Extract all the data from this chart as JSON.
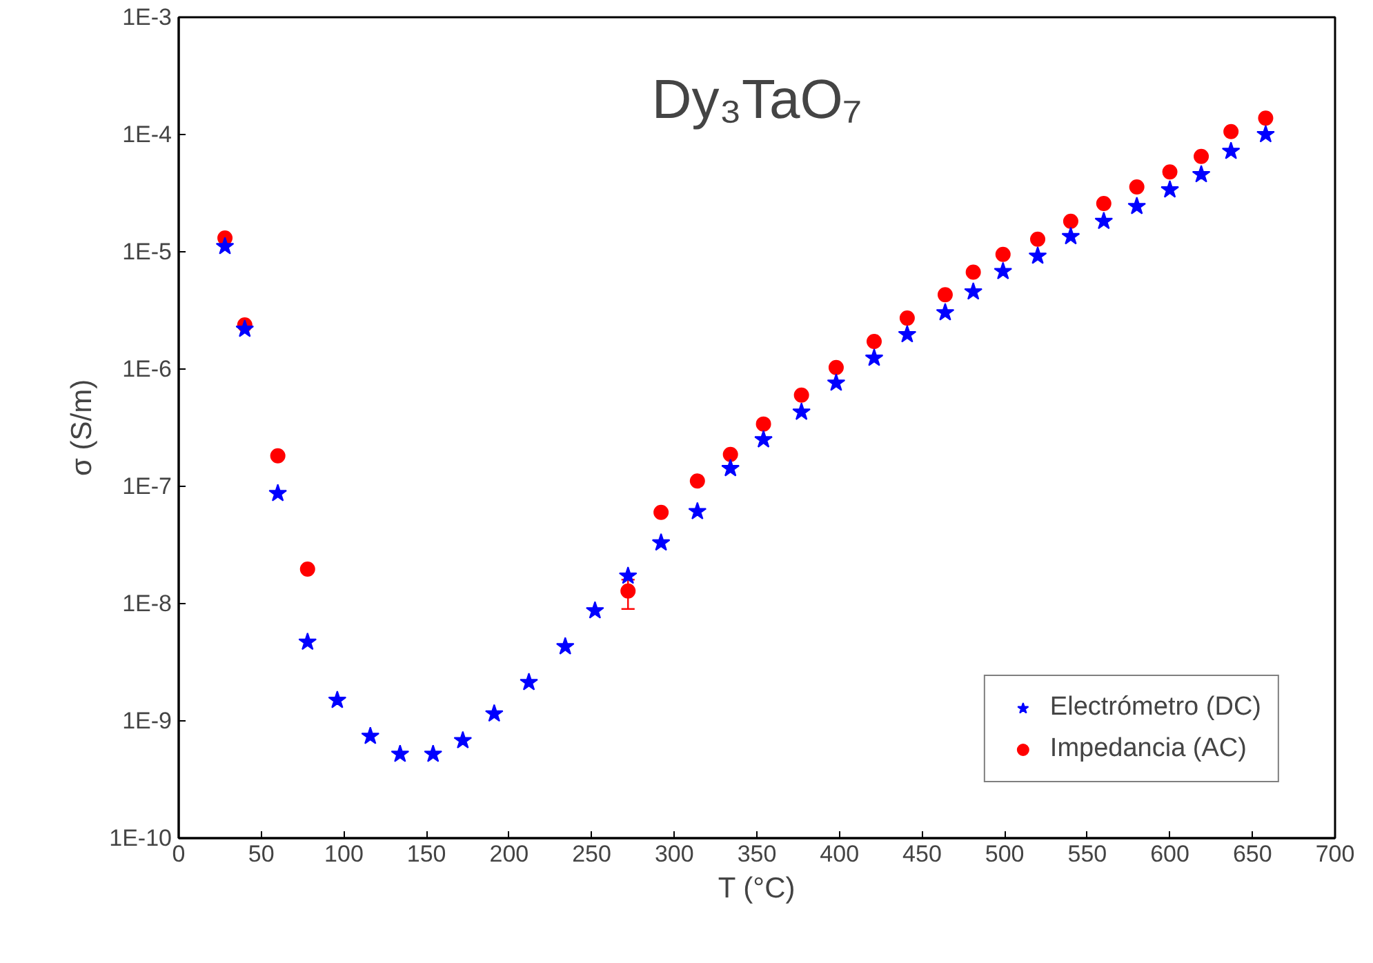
{
  "chart_data": {
    "type": "scatter",
    "title": "Dy₃TaO₇",
    "xlabel": "T (°C)",
    "ylabel": "σ (S/m)",
    "log": "y",
    "grid": false,
    "legend": "bottom right",
    "xlim": [
      0,
      700
    ],
    "xticks": [
      0,
      50,
      100,
      150,
      200,
      250,
      300,
      350,
      400,
      450,
      500,
      550,
      600,
      650,
      700
    ],
    "ylim": [
      1e-10,
      0.001
    ],
    "yticks": [
      {
        "value": 1e-10,
        "label": "1E-10"
      },
      {
        "value": 1e-09,
        "label": "1E-9"
      },
      {
        "value": 1e-08,
        "label": "1E-8"
      },
      {
        "value": 1e-07,
        "label": "1E-7"
      },
      {
        "value": 1e-06,
        "label": "1E-6"
      },
      {
        "value": 1e-05,
        "label": "1E-5"
      },
      {
        "value": 0.0001,
        "label": "1E-4"
      },
      {
        "value": 0.001,
        "label": "1E-3"
      }
    ],
    "series": [
      {
        "name": "Electrómetro (DC)",
        "color": "#0000ff",
        "marker": "star",
        "x": [
          28,
          40,
          60,
          78,
          96,
          116,
          134,
          154,
          172,
          191,
          212,
          234,
          252,
          272,
          292,
          314,
          334,
          354,
          377,
          398,
          421,
          441,
          464,
          481,
          499,
          520,
          540,
          560,
          580,
          600,
          619,
          637,
          658
        ],
        "values": [
          1.11e-05,
          2.19e-06,
          8.7e-08,
          4.7e-09,
          1.5e-09,
          7.4e-10,
          5.2e-10,
          5.2e-10,
          6.8e-10,
          1.15e-09,
          2.13e-09,
          4.3e-09,
          8.7e-09,
          1.72e-08,
          3.3e-08,
          6.1e-08,
          1.42e-07,
          2.5e-07,
          4.3e-07,
          7.6e-07,
          1.24e-06,
          1.97e-06,
          3.03e-06,
          4.56e-06,
          6.8e-06,
          9.2e-06,
          1.35e-05,
          1.82e-05,
          2.44e-05,
          3.38e-05,
          4.56e-05,
          7.2e-05,
          0.0001
        ]
      },
      {
        "name": "Impedancia (AC)",
        "color": "#ff0000",
        "marker": "circle",
        "x": [
          28,
          40,
          60,
          78,
          272,
          292,
          314,
          334,
          354,
          377,
          398,
          421,
          441,
          464,
          481,
          499,
          520,
          540,
          560,
          580,
          600,
          619,
          637,
          658
        ],
        "values": [
          1.31e-05,
          2.38e-06,
          1.82e-07,
          1.97e-08,
          1.28e-08,
          6e-08,
          1.11e-07,
          1.87e-07,
          3.4e-07,
          6e-07,
          1.03e-06,
          1.72e-06,
          2.72e-06,
          4.3e-06,
          6.7e-06,
          9.5e-06,
          1.28e-05,
          1.82e-05,
          2.58e-05,
          3.57e-05,
          4.8e-05,
          6.5e-05,
          0.000106,
          0.000138
        ],
        "errors": [
          null,
          null,
          null,
          null,
          [
            9e-09,
            1.6e-08
          ],
          null,
          null,
          null,
          null,
          null,
          null,
          null,
          null,
          null,
          null,
          null,
          null,
          null,
          null,
          null,
          null,
          null,
          null,
          null
        ]
      }
    ]
  }
}
